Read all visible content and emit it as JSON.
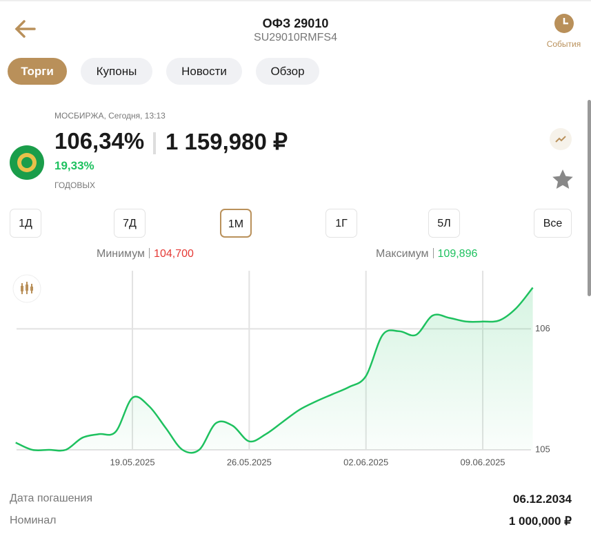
{
  "header": {
    "title": "ОФЗ 29010",
    "subtitle": "SU29010RMFS4",
    "events": "События"
  },
  "tabs": [
    "Торги",
    "Купоны",
    "Новости",
    "Обзор"
  ],
  "quote": {
    "exchange": "МОСБИРЖА, Сегодня, 13:13",
    "price": "106,34%",
    "amount": "1 159,980 ₽",
    "yield": "19,33%",
    "yield_label": "ГОДОВЫХ"
  },
  "periods": [
    "1Д",
    "7Д",
    "1М",
    "1Г",
    "5Л",
    "Все"
  ],
  "range": {
    "min_label": "Минимум",
    "min": "104,700",
    "max_label": "Максимум",
    "max": "109,896"
  },
  "chart_data": {
    "type": "line",
    "categories": [
      null,
      null,
      null,
      null,
      null,
      null,
      null,
      "19.05.2025",
      null,
      null,
      null,
      null,
      null,
      null,
      "26.05.2025",
      null,
      null,
      null,
      null,
      null,
      null,
      "02.06.2025",
      null,
      null,
      null,
      null,
      null,
      null,
      "09.06.2025",
      null,
      null,
      null
    ],
    "series": [
      {
        "color": "#1ec15f",
        "values": [
          105.06,
          105.0,
          105.0,
          105.0,
          105.1,
          105.13,
          105.15,
          105.43,
          105.36,
          105.18,
          105.0,
          105.0,
          105.22,
          105.2,
          105.07,
          105.13,
          105.23,
          105.33,
          105.4,
          105.46,
          105.52,
          105.61,
          105.95,
          105.98,
          105.95,
          106.11,
          106.09,
          106.06,
          106.06,
          106.07,
          106.17,
          106.34
        ]
      }
    ],
    "ylim": [
      105,
      106.48
    ],
    "yticks": [
      105,
      106
    ],
    "grid": true
  },
  "details": [
    {
      "label": "Дата погашения",
      "value": "06.12.2034"
    },
    {
      "label": "Номинал",
      "value": "1 000,000 ₽"
    }
  ]
}
